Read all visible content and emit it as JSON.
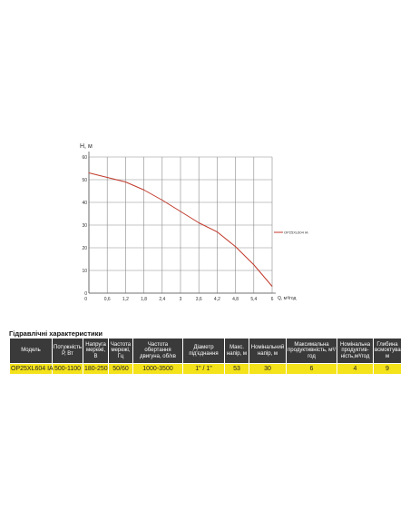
{
  "chart_data": {
    "type": "line",
    "ylabel": "H, м",
    "xlabel": "Q, м³/год",
    "x_ticks": [
      "0",
      "0,6",
      "1,2",
      "1,8",
      "2,4",
      "3",
      "3,6",
      "4,2",
      "4,8",
      "5,4",
      "6"
    ],
    "y_ticks": [
      "0",
      "10",
      "20",
      "30",
      "40",
      "50",
      "60"
    ],
    "xlim": [
      0,
      6
    ],
    "ylim": [
      0,
      60
    ],
    "grid": true,
    "legend_position": "right",
    "series": [
      {
        "name": "OP25XL604 IA",
        "color": "#c0392b",
        "x": [
          0,
          0.6,
          1.2,
          1.8,
          2.4,
          3.0,
          3.6,
          4.2,
          4.8,
          5.4,
          6.0
        ],
        "y": [
          53,
          51,
          49,
          45.5,
          41,
          36,
          31,
          27,
          20.5,
          12.5,
          3
        ]
      }
    ]
  },
  "table": {
    "title": "Гідравлічні характеристики",
    "headers": [
      "Модель",
      "Потужність Р, Вт",
      "Напруга мережі, В",
      "Частота мережі, Гц",
      "Частота обертання двигуна, об/хв",
      "Діаметр під'єднання",
      "Макс. напір, м",
      "Номінальний напір, м",
      "Максимальна продуктивність, м³/год",
      "Номінальна продуктив-ність,м³/год",
      "Глибина всмоктування, м"
    ],
    "rows": [
      [
        "OP25XL604 IA",
        "500-1100",
        "180-250",
        "50/60",
        "1000-3500",
        "1\" / 1\"",
        "53",
        "30",
        "6",
        "4",
        "9"
      ]
    ]
  }
}
